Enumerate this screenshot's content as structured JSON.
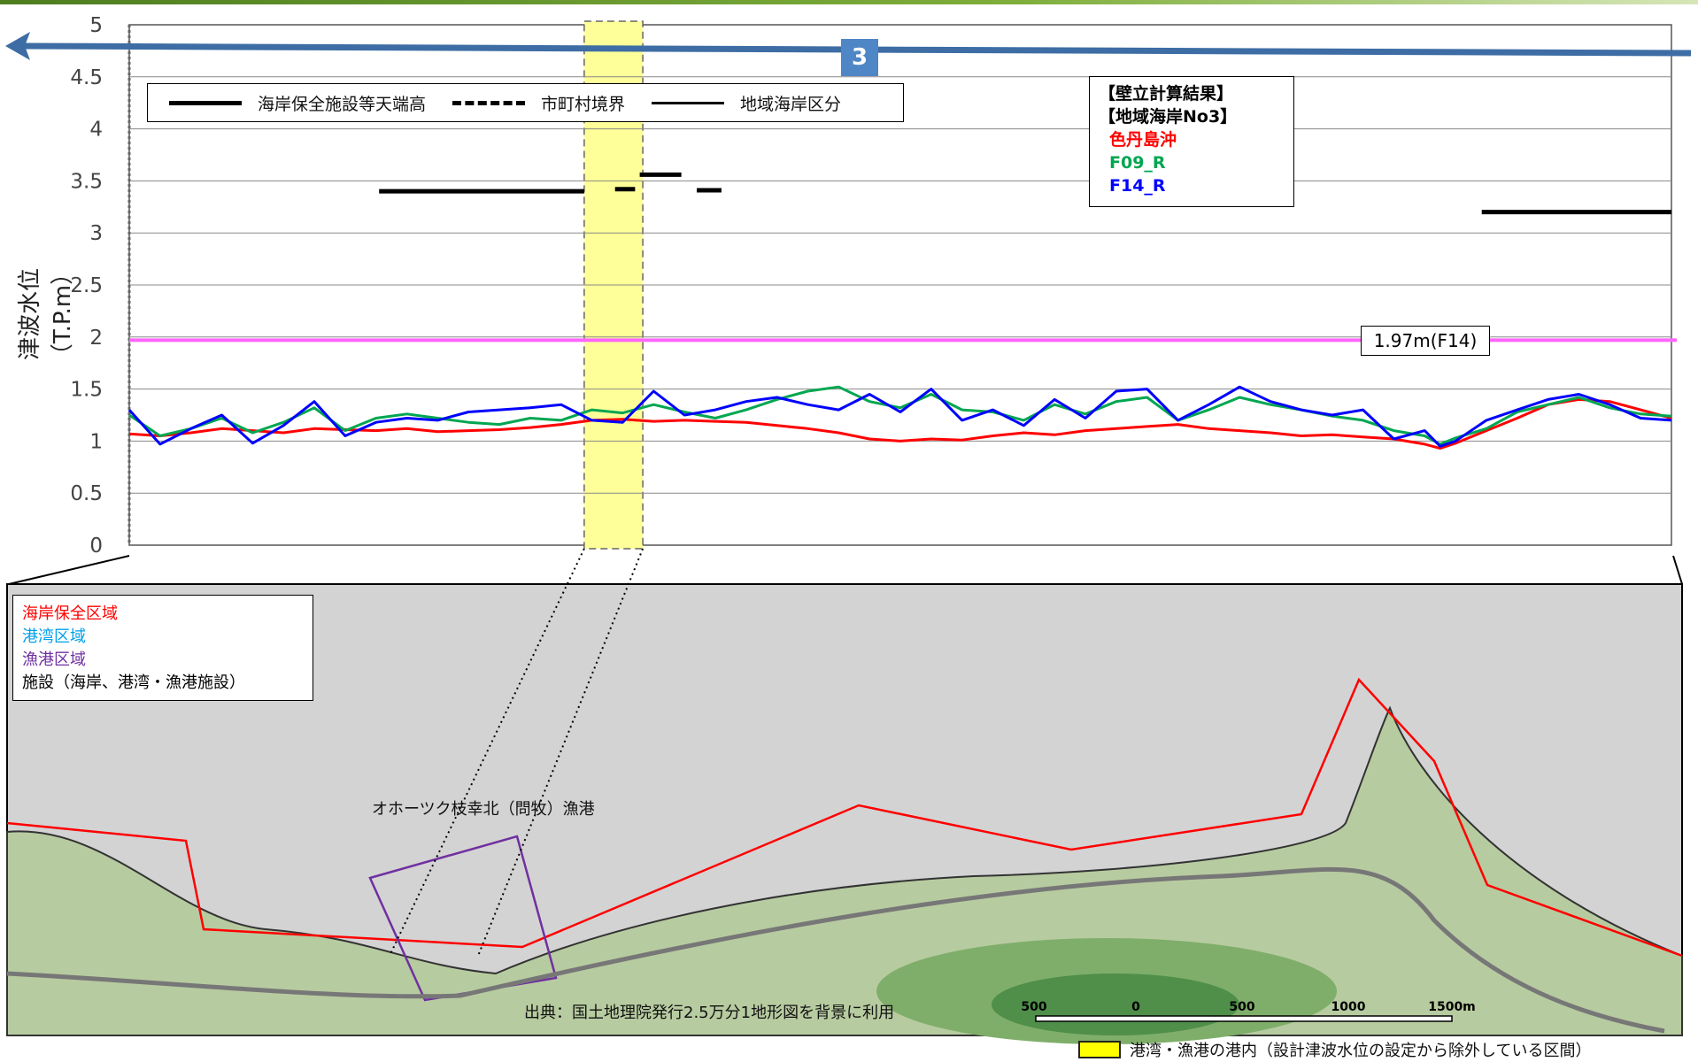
{
  "section_badge": "3",
  "legend_top": [
    {
      "label": "海岸保全施設等天端高",
      "style": "solid-thick"
    },
    {
      "label": "市町村境界",
      "style": "dash-dot"
    },
    {
      "label": "地域海岸区分",
      "style": "solid"
    }
  ],
  "calc_box": {
    "title1": "【壁立計算結果】",
    "title2": "【地域海岸No3】",
    "entries": [
      {
        "label": "色丹島沖",
        "color": "#ff0000"
      },
      {
        "label": "F09_R",
        "color": "#00a651"
      },
      {
        "label": "F14_R",
        "color": "#0000ff"
      }
    ]
  },
  "f14_label": "1.97m(F14)",
  "map_legend": [
    {
      "label": "海岸保全区域",
      "color": "#ff0000"
    },
    {
      "label": "港湾区域",
      "color": "#00a0e9"
    },
    {
      "label": "漁港区域",
      "color": "#7030a0"
    },
    {
      "label": "施設（海岸、港湾・漁港施設）",
      "color": "#000000"
    }
  ],
  "map_place_label": "オホーツク枝幸北（問牧）漁港",
  "map_source": "出典：国土地理院発行2.5万分1地形図を背景に利用",
  "scale_labels": [
    "500",
    "0",
    "500",
    "1000",
    "1500m"
  ],
  "bottom_legend": "港湾・漁港の港内（設計津波水位の設定から除外している区間）",
  "chart_data": {
    "type": "line",
    "ylabel": "津波水位（T.P.m）",
    "ylim": [
      0,
      5
    ],
    "yticks": [
      "0",
      "0.5",
      "1",
      "1.5",
      "2",
      "2.5",
      "3",
      "3.5",
      "4",
      "4.5",
      "5"
    ],
    "x_range": [
      0,
      100
    ],
    "grid": true,
    "excluded_band": [
      29.5,
      33.3
    ],
    "design_level": {
      "value": 1.97,
      "label": "1.97m(F14)",
      "color": "#ff66ff"
    },
    "facility_crest": [
      {
        "x": [
          16.2,
          29.5
        ],
        "y": 3.4
      },
      {
        "x": [
          31.5,
          32.8
        ],
        "y": 3.42
      },
      {
        "x": [
          33.1,
          35.8
        ],
        "y": 3.56
      },
      {
        "x": [
          36.8,
          38.4
        ],
        "y": 3.41
      },
      {
        "x": [
          87.7,
          100
        ],
        "y": 3.2
      }
    ],
    "series": [
      {
        "name": "色丹島沖",
        "color": "#ff0000",
        "x": [
          0,
          2,
          4,
          6,
          8,
          10,
          12,
          14,
          16,
          18,
          20,
          22,
          24,
          26,
          28,
          30,
          32,
          34,
          36,
          38,
          40,
          42,
          44,
          46,
          48,
          50,
          52,
          54,
          56,
          58,
          60,
          62,
          64,
          66,
          68,
          70,
          72,
          74,
          76,
          78,
          80,
          82,
          84,
          85,
          86,
          88,
          90,
          92,
          94,
          96,
          98,
          100
        ],
        "y": [
          1.07,
          1.05,
          1.08,
          1.12,
          1.1,
          1.08,
          1.12,
          1.11,
          1.1,
          1.12,
          1.09,
          1.1,
          1.11,
          1.13,
          1.16,
          1.2,
          1.21,
          1.19,
          1.2,
          1.19,
          1.18,
          1.15,
          1.12,
          1.08,
          1.02,
          1.0,
          1.02,
          1.01,
          1.05,
          1.08,
          1.06,
          1.1,
          1.12,
          1.14,
          1.16,
          1.12,
          1.1,
          1.08,
          1.05,
          1.06,
          1.04,
          1.02,
          0.97,
          0.93,
          0.98,
          1.1,
          1.22,
          1.35,
          1.4,
          1.38,
          1.3,
          1.22
        ]
      },
      {
        "name": "F09_R",
        "color": "#00a651",
        "x": [
          0,
          2,
          4,
          6,
          8,
          10,
          12,
          14,
          16,
          18,
          20,
          22,
          24,
          26,
          28,
          30,
          32,
          34,
          36,
          38,
          40,
          42,
          44,
          46,
          48,
          50,
          52,
          54,
          56,
          58,
          60,
          62,
          64,
          66,
          68,
          70,
          72,
          74,
          76,
          78,
          80,
          82,
          84,
          85,
          86,
          88,
          90,
          92,
          94,
          96,
          98,
          100
        ],
        "y": [
          1.25,
          1.05,
          1.12,
          1.22,
          1.08,
          1.18,
          1.32,
          1.1,
          1.22,
          1.26,
          1.22,
          1.18,
          1.16,
          1.22,
          1.2,
          1.3,
          1.27,
          1.35,
          1.28,
          1.22,
          1.3,
          1.4,
          1.48,
          1.52,
          1.38,
          1.32,
          1.45,
          1.3,
          1.28,
          1.2,
          1.35,
          1.26,
          1.38,
          1.42,
          1.2,
          1.3,
          1.42,
          1.35,
          1.3,
          1.24,
          1.2,
          1.1,
          1.05,
          0.97,
          1.03,
          1.12,
          1.28,
          1.35,
          1.42,
          1.32,
          1.26,
          1.24
        ]
      },
      {
        "name": "F14_R",
        "color": "#0000ff",
        "x": [
          0,
          2,
          4,
          6,
          8,
          10,
          12,
          14,
          16,
          18,
          20,
          22,
          24,
          26,
          28,
          30,
          32,
          34,
          36,
          38,
          40,
          42,
          44,
          46,
          48,
          50,
          52,
          54,
          56,
          58,
          60,
          62,
          64,
          66,
          68,
          70,
          72,
          74,
          76,
          78,
          80,
          82,
          84,
          85,
          86,
          88,
          90,
          92,
          94,
          96,
          98,
          100
        ],
        "y": [
          1.3,
          0.97,
          1.12,
          1.25,
          0.98,
          1.15,
          1.38,
          1.05,
          1.18,
          1.22,
          1.2,
          1.28,
          1.3,
          1.32,
          1.35,
          1.2,
          1.18,
          1.48,
          1.25,
          1.3,
          1.38,
          1.42,
          1.35,
          1.3,
          1.45,
          1.28,
          1.5,
          1.2,
          1.3,
          1.15,
          1.4,
          1.22,
          1.48,
          1.5,
          1.2,
          1.35,
          1.52,
          1.38,
          1.3,
          1.25,
          1.3,
          1.02,
          1.1,
          0.95,
          1.0,
          1.2,
          1.3,
          1.4,
          1.45,
          1.35,
          1.22,
          1.2
        ]
      }
    ]
  }
}
